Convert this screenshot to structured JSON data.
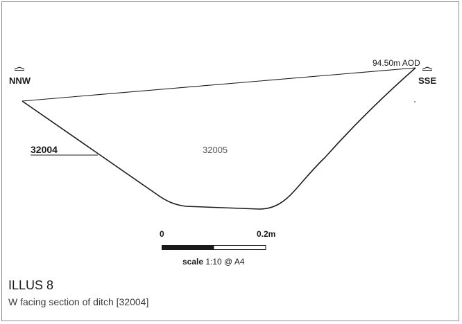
{
  "section": {
    "left_label": "NNW",
    "right_label": "SSE",
    "datum_label": "94.50m AOD",
    "cut_label": "32004",
    "fill_label": "32005"
  },
  "scale_bar": {
    "start_label": "0",
    "end_label": "0.2m",
    "caption_bold": "scale",
    "caption_rest": " 1:10 @ A4"
  },
  "caption": {
    "title": "ILLUS 8",
    "text": "W facing section of ditch [32004]"
  }
}
